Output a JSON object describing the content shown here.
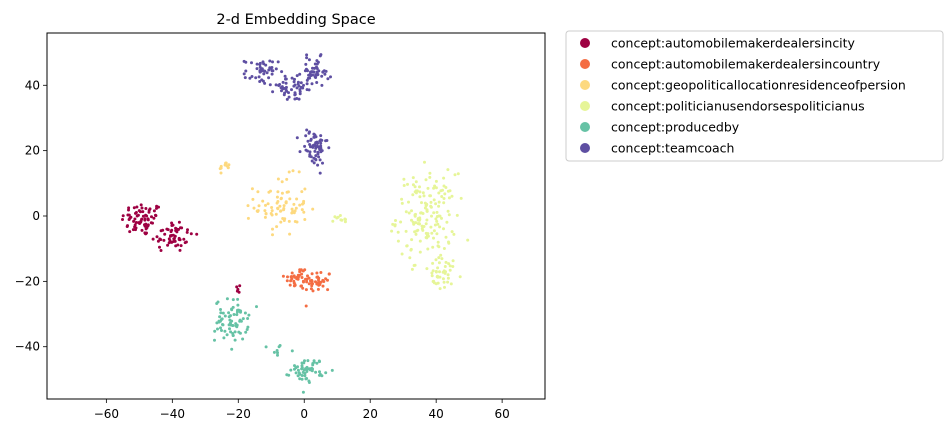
{
  "chart_data": {
    "type": "scatter",
    "title": "2-d Embedding Space",
    "xlabel": "",
    "ylabel": "",
    "xlim": [
      -78,
      73
    ],
    "ylim": [
      -56,
      56
    ],
    "xticks": [
      -60,
      -40,
      -20,
      0,
      20,
      40,
      60
    ],
    "yticks": [
      -40,
      -20,
      0,
      20,
      40
    ],
    "grid": false,
    "legend_position": "outside-right",
    "series": [
      {
        "name": "concept:automobilemakerdealersincity",
        "color": "#9e0142",
        "clusters": [
          {
            "cx": -49,
            "cy": -1,
            "sx": 3.2,
            "sy": 2.6,
            "n": 70
          },
          {
            "cx": -40,
            "cy": -6,
            "sx": 3.2,
            "sy": 2.6,
            "n": 55
          },
          {
            "cx": -21,
            "cy": -23,
            "sx": 1.0,
            "sy": 1.2,
            "n": 5
          }
        ]
      },
      {
        "name": "concept:automobilemakerdealersincountry",
        "color": "#f46d43",
        "clusters": [
          {
            "cx": -2,
            "cy": -19,
            "sx": 2.0,
            "sy": 1.8,
            "n": 35
          },
          {
            "cx": 4,
            "cy": -20,
            "sx": 2.2,
            "sy": 1.8,
            "n": 40
          }
        ]
      },
      {
        "name": "concept:geopoliticallocationresidenceofpersion",
        "color": "#fdd97f",
        "clusters": [
          {
            "cx": -24,
            "cy": 15,
            "sx": 0.8,
            "sy": 0.8,
            "n": 12
          },
          {
            "cx": -7,
            "cy": 3,
            "sx": 4.0,
            "sy": 4.5,
            "n": 80
          }
        ]
      },
      {
        "name": "concept:politicianusendorsespoliticianus",
        "color": "#e6f598",
        "clusters": [
          {
            "cx": 37,
            "cy": 0,
            "sx": 4.5,
            "sy": 6.5,
            "n": 160
          },
          {
            "cx": 42,
            "cy": -18,
            "sx": 3.0,
            "sy": 2.5,
            "n": 40
          },
          {
            "cx": 11,
            "cy": -1,
            "sx": 1.6,
            "sy": 0.9,
            "n": 10
          }
        ]
      },
      {
        "name": "concept:producedby",
        "color": "#66c2a5",
        "clusters": [
          {
            "cx": -22,
            "cy": -32,
            "sx": 2.5,
            "sy": 3.2,
            "n": 75
          },
          {
            "cx": 1,
            "cy": -47,
            "sx": 2.5,
            "sy": 1.8,
            "n": 55
          },
          {
            "cx": -8,
            "cy": -41,
            "sx": 1.5,
            "sy": 1.5,
            "n": 8
          }
        ]
      },
      {
        "name": "concept:teamcoach",
        "color": "#5e4fa2",
        "clusters": [
          {
            "cx": -13,
            "cy": 44,
            "sx": 2.5,
            "sy": 2.0,
            "n": 45
          },
          {
            "cx": -4,
            "cy": 39,
            "sx": 3.5,
            "sy": 2.0,
            "n": 45
          },
          {
            "cx": 3,
            "cy": 44,
            "sx": 2.2,
            "sy": 2.2,
            "n": 55
          },
          {
            "cx": 3,
            "cy": 21,
            "sx": 2.0,
            "sy": 3.0,
            "n": 65
          }
        ]
      }
    ]
  }
}
